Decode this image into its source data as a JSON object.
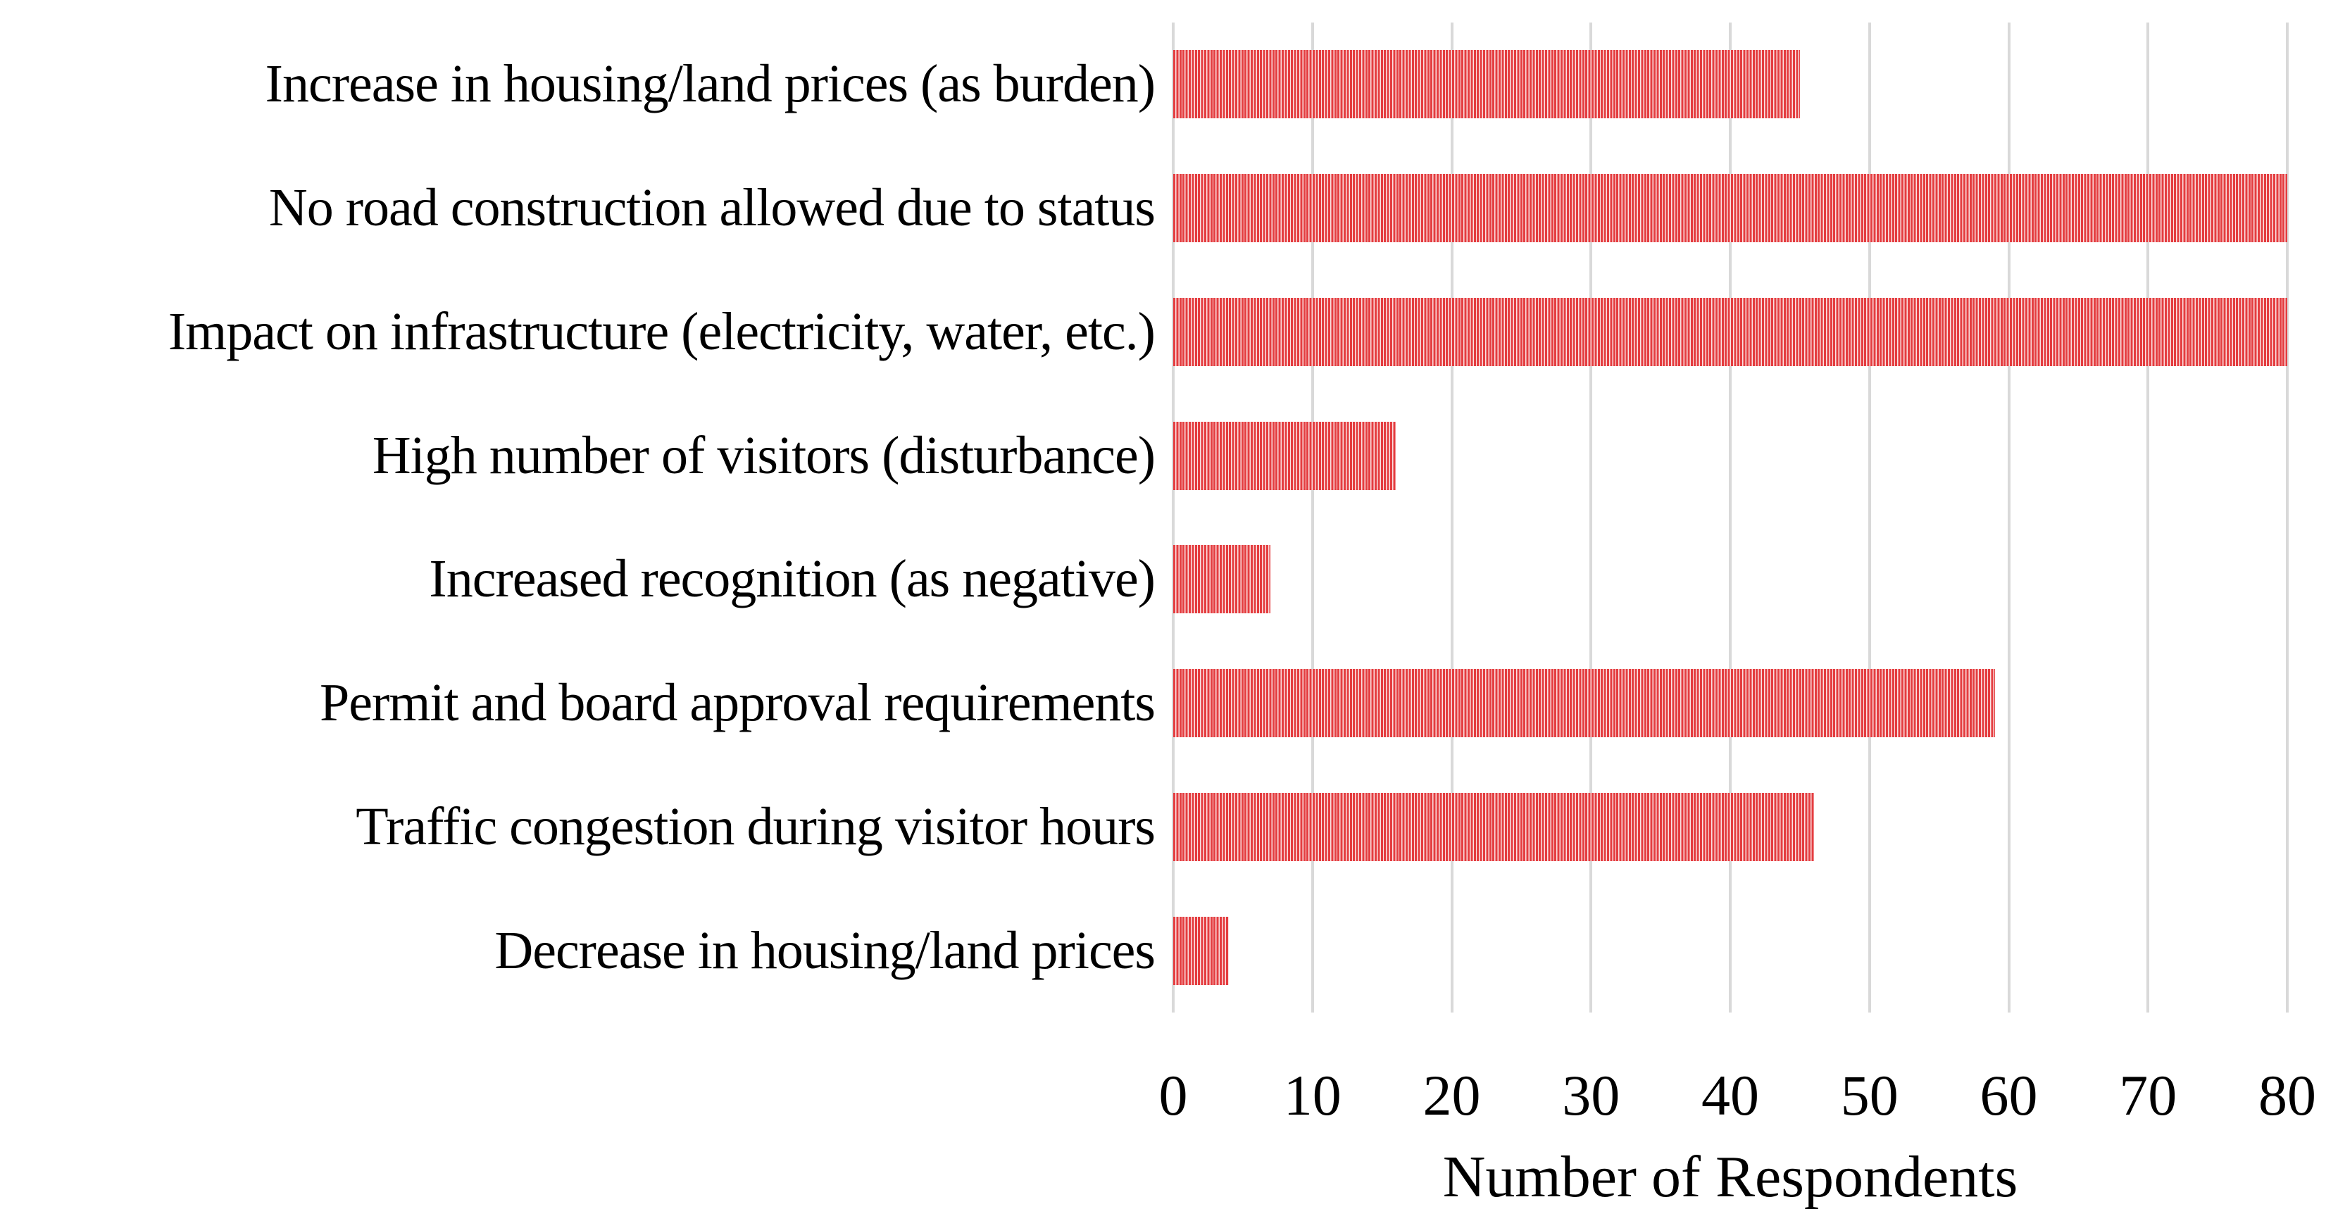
{
  "chart_data": {
    "type": "bar",
    "orientation": "horizontal",
    "title": "",
    "categories": [
      "Increase in housing/land prices (as burden)",
      "No road construction allowed due to status",
      "Impact on infrastructure (electricity, water, etc.)",
      "High number of visitors (disturbance)",
      "Increased recognition (as negative)",
      "Permit and board approval requirements",
      "Traffic congestion during visitor hours",
      "Decrease in housing/land prices"
    ],
    "values": [
      45,
      80,
      80,
      16,
      7,
      59,
      46,
      4
    ],
    "xlabel": "Number of Respondents",
    "ylabel": "",
    "xlim": [
      0,
      80
    ],
    "xticks": [
      0,
      10,
      20,
      30,
      40,
      50,
      60,
      70,
      80
    ],
    "grid": "vertical-gridlines-only",
    "legend": "none",
    "bar_fill_style": "vertical-stripes",
    "colors": {
      "bar_stripe": "#E43D40",
      "bar_stripe_gap": "#FBE3E3",
      "gridline": "#D9D9D9",
      "text": "#000000",
      "background": "#FFFFFF"
    }
  }
}
